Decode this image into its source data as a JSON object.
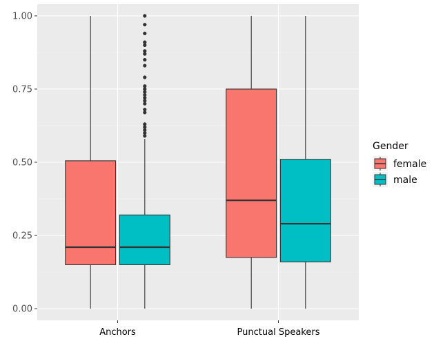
{
  "chart_data": {
    "type": "boxplot",
    "title": "",
    "xlabel": "",
    "ylabel": "",
    "ylim": [
      -0.04,
      1.04
    ],
    "grid": true,
    "legend_position": "right",
    "legend_title": "Gender",
    "categories": [
      "Anchors",
      "Punctual Speakers"
    ],
    "y_ticks": [
      0,
      0.25,
      0.5,
      0.75,
      1.0
    ],
    "y_tick_labels": [
      "0.00",
      "0.25",
      "0.50",
      "0.75",
      "1.00"
    ],
    "series": [
      {
        "name": "female",
        "color": "#F8766D",
        "boxes": [
          {
            "category": "Anchors",
            "min": 0.0,
            "q1": 0.15,
            "median": 0.21,
            "q3": 0.505,
            "max": 1.0,
            "outliers": []
          },
          {
            "category": "Punctual Speakers",
            "min": 0.0,
            "q1": 0.175,
            "median": 0.37,
            "q3": 0.75,
            "max": 1.0,
            "outliers": []
          }
        ]
      },
      {
        "name": "male",
        "color": "#00BFC4",
        "boxes": [
          {
            "category": "Anchors",
            "min": 0.0,
            "q1": 0.15,
            "median": 0.21,
            "q3": 0.32,
            "max": 0.58,
            "outliers": [
              0.59,
              0.6,
              0.61,
              0.62,
              0.63,
              0.67,
              0.68,
              0.7,
              0.71,
              0.72,
              0.73,
              0.74,
              0.75,
              0.76,
              0.79,
              0.83,
              0.85,
              0.87,
              0.88,
              0.9,
              0.91,
              0.94,
              0.97,
              1.0
            ]
          },
          {
            "category": "Punctual Speakers",
            "min": 0.0,
            "q1": 0.16,
            "median": 0.29,
            "q3": 0.51,
            "max": 1.0,
            "outliers": []
          }
        ]
      }
    ]
  }
}
